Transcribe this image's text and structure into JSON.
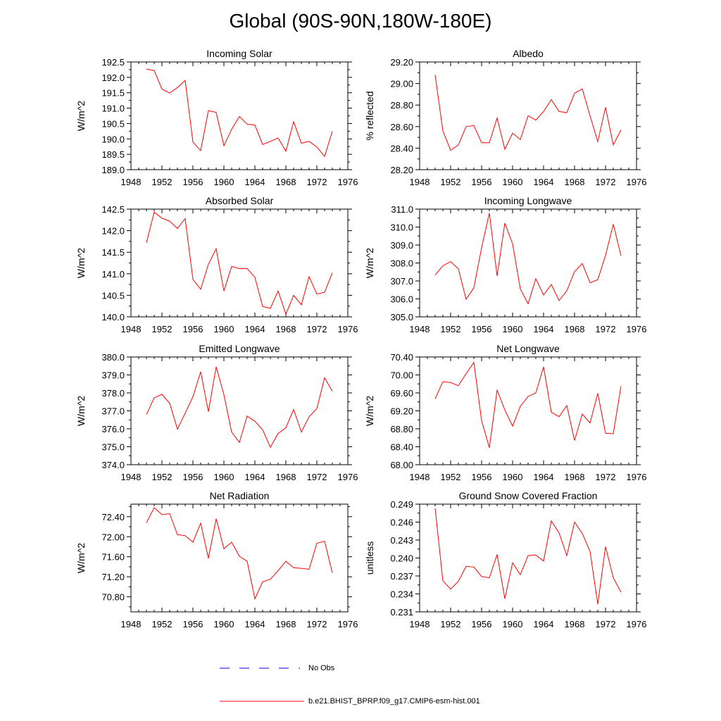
{
  "title": "Global (90S-90N,180W-180E)",
  "colors": {
    "model": "#ff0000",
    "obs": "#0000ff",
    "axis": "#000000"
  },
  "legend": {
    "obs_label": "No Obs",
    "model_label": "b.e21.BHIST_BPRP.f09_g17.CMIP6-esm-hist.001"
  },
  "chart_data": [
    {
      "type": "line",
      "title": "Incoming Solar",
      "ylabel": "W/m^2",
      "xlim": [
        1948,
        1976
      ],
      "xticks": [
        "1948",
        "1952",
        "1956",
        "1960",
        "1964",
        "1968",
        "1972",
        "1976"
      ],
      "ylim": [
        189.0,
        192.5
      ],
      "yticks": [
        "189.0",
        "189.5",
        "190.0",
        "190.5",
        "191.0",
        "191.5",
        "192.0",
        "192.5"
      ],
      "x": [
        1950,
        1951,
        1952,
        1953,
        1954,
        1955,
        1956,
        1957,
        1958,
        1959,
        1960,
        1961,
        1962,
        1963,
        1964,
        1965,
        1966,
        1967,
        1968,
        1969,
        1970,
        1971,
        1972,
        1973,
        1974
      ],
      "values": [
        192.27,
        192.22,
        191.62,
        191.49,
        191.67,
        191.9,
        189.9,
        189.62,
        190.92,
        190.86,
        189.78,
        190.31,
        190.73,
        190.48,
        190.45,
        189.82,
        189.92,
        190.03,
        189.6,
        190.56,
        189.86,
        189.92,
        189.74,
        189.43,
        190.25
      ]
    },
    {
      "type": "line",
      "title": "Albedo",
      "ylabel": "% reflected",
      "xlim": [
        1948,
        1976
      ],
      "xticks": [
        "1948",
        "1952",
        "1956",
        "1960",
        "1964",
        "1968",
        "1972",
        "1976"
      ],
      "ylim": [
        28.2,
        29.2
      ],
      "yticks": [
        "28.20",
        "28.40",
        "28.60",
        "28.80",
        "29.00",
        "29.20"
      ],
      "x": [
        1950,
        1951,
        1952,
        1953,
        1954,
        1955,
        1956,
        1957,
        1958,
        1959,
        1960,
        1961,
        1962,
        1963,
        1964,
        1965,
        1966,
        1967,
        1968,
        1969,
        1970,
        1971,
        1972,
        1973,
        1974
      ],
      "values": [
        29.08,
        28.56,
        28.38,
        28.43,
        28.6,
        28.61,
        28.45,
        28.45,
        28.68,
        28.39,
        28.54,
        28.48,
        28.7,
        28.66,
        28.74,
        28.85,
        28.74,
        28.73,
        28.91,
        28.95,
        28.7,
        28.46,
        28.78,
        28.43,
        28.57
      ]
    },
    {
      "type": "line",
      "title": "Absorbed Solar",
      "ylabel": "W/m^2",
      "xlim": [
        1948,
        1976
      ],
      "xticks": [
        "1948",
        "1952",
        "1956",
        "1960",
        "1964",
        "1968",
        "1972",
        "1976"
      ],
      "ylim": [
        140.0,
        142.5
      ],
      "yticks": [
        "140.0",
        "140.5",
        "141.0",
        "141.5",
        "142.0",
        "142.5"
      ],
      "x": [
        1950,
        1951,
        1952,
        1953,
        1954,
        1955,
        1956,
        1957,
        1958,
        1959,
        1960,
        1961,
        1962,
        1963,
        1964,
        1965,
        1966,
        1967,
        1968,
        1969,
        1970,
        1971,
        1972,
        1973,
        1974
      ],
      "values": [
        141.72,
        142.43,
        142.29,
        142.22,
        142.05,
        142.28,
        140.87,
        140.64,
        141.22,
        141.58,
        140.6,
        141.17,
        141.12,
        141.12,
        140.92,
        140.24,
        140.2,
        140.6,
        140.06,
        140.5,
        140.28,
        140.93,
        140.53,
        140.57,
        141.02
      ]
    },
    {
      "type": "line",
      "title": "Incoming Longwave",
      "ylabel": "W/m^2",
      "xlim": [
        1948,
        1976
      ],
      "xticks": [
        "1948",
        "1952",
        "1956",
        "1960",
        "1964",
        "1968",
        "1972",
        "1976"
      ],
      "ylim": [
        305.0,
        311.0
      ],
      "yticks": [
        "305.0",
        "306.0",
        "307.0",
        "308.0",
        "309.0",
        "310.0",
        "311.0"
      ],
      "x": [
        1950,
        1951,
        1952,
        1953,
        1954,
        1955,
        1956,
        1957,
        1958,
        1959,
        1960,
        1961,
        1962,
        1963,
        1964,
        1965,
        1966,
        1967,
        1968,
        1969,
        1970,
        1971,
        1972,
        1973,
        1974
      ],
      "values": [
        307.33,
        307.84,
        308.08,
        307.67,
        305.98,
        306.62,
        308.85,
        310.78,
        307.28,
        310.22,
        309.07,
        306.55,
        305.73,
        307.12,
        306.22,
        306.8,
        305.91,
        306.45,
        307.52,
        307.97,
        306.9,
        307.07,
        308.42,
        310.16,
        308.4
      ]
    },
    {
      "type": "line",
      "title": "Emitted Longwave",
      "ylabel": "W/m^2",
      "xlim": [
        1948,
        1976
      ],
      "xticks": [
        "1948",
        "1952",
        "1956",
        "1960",
        "1964",
        "1968",
        "1972",
        "1976"
      ],
      "ylim": [
        374.0,
        380.0
      ],
      "yticks": [
        "374.0",
        "375.0",
        "376.0",
        "377.0",
        "378.0",
        "379.0",
        "380.0"
      ],
      "x": [
        1950,
        1951,
        1952,
        1953,
        1954,
        1955,
        1956,
        1957,
        1958,
        1959,
        1960,
        1961,
        1962,
        1963,
        1964,
        1965,
        1966,
        1967,
        1968,
        1969,
        1970,
        1971,
        1972,
        1973,
        1974
      ],
      "values": [
        376.8,
        377.72,
        377.92,
        377.42,
        375.98,
        376.87,
        377.79,
        379.18,
        376.95,
        379.46,
        377.9,
        375.81,
        375.24,
        376.71,
        376.42,
        375.95,
        374.97,
        375.74,
        376.06,
        377.08,
        375.82,
        376.67,
        377.12,
        378.84,
        378.09
      ]
    },
    {
      "type": "line",
      "title": "Net Longwave",
      "ylabel": "W/m^2",
      "xlim": [
        1948,
        1976
      ],
      "xticks": [
        "1948",
        "1952",
        "1956",
        "1960",
        "1964",
        "1968",
        "1972",
        "1976"
      ],
      "ylim": [
        68.0,
        70.4
      ],
      "yticks": [
        "68.00",
        "68.40",
        "68.80",
        "69.20",
        "69.60",
        "70.00",
        "70.40"
      ],
      "x": [
        1950,
        1951,
        1952,
        1953,
        1954,
        1955,
        1956,
        1957,
        1958,
        1959,
        1960,
        1961,
        1962,
        1963,
        1964,
        1965,
        1966,
        1967,
        1968,
        1969,
        1970,
        1971,
        1972,
        1973,
        1974
      ],
      "values": [
        69.47,
        69.85,
        69.83,
        69.76,
        70.03,
        70.28,
        68.98,
        68.38,
        69.66,
        69.22,
        68.86,
        69.3,
        69.52,
        69.6,
        70.18,
        69.17,
        69.07,
        69.32,
        68.54,
        69.13,
        68.93,
        69.59,
        68.7,
        68.69,
        69.75
      ]
    },
    {
      "type": "line",
      "title": "Net Radiation",
      "ylabel": "W/m^2",
      "xlim": [
        1948,
        1976
      ],
      "xticks": [
        "1948",
        "1952",
        "1956",
        "1960",
        "1964",
        "1968",
        "1972",
        "1976"
      ],
      "ylim": [
        70.5,
        72.65
      ],
      "yticks": [
        "70.80",
        "71.20",
        "71.60",
        "72.00",
        "72.40"
      ],
      "x": [
        1950,
        1951,
        1952,
        1953,
        1954,
        1955,
        1956,
        1957,
        1958,
        1959,
        1960,
        1961,
        1962,
        1963,
        1964,
        1965,
        1966,
        1967,
        1968,
        1969,
        1970,
        1971,
        1972,
        1973,
        1974
      ],
      "values": [
        72.28,
        72.58,
        72.44,
        72.46,
        72.04,
        72.02,
        71.89,
        72.27,
        71.57,
        72.36,
        71.76,
        71.89,
        71.61,
        71.51,
        70.76,
        71.1,
        71.15,
        71.32,
        71.51,
        71.38,
        71.37,
        71.35,
        71.87,
        71.91,
        71.28
      ]
    },
    {
      "type": "line",
      "title": "Ground Snow Covered Fraction",
      "ylabel": "unitless",
      "xlim": [
        1948,
        1976
      ],
      "xticks": [
        "1948",
        "1952",
        "1956",
        "1960",
        "1964",
        "1968",
        "1972",
        "1976"
      ],
      "ylim": [
        0.231,
        0.249
      ],
      "yticks": [
        "0.231",
        "0.234",
        "0.237",
        "0.240",
        "0.243",
        "0.246",
        "0.249"
      ],
      "x": [
        1950,
        1951,
        1952,
        1953,
        1954,
        1955,
        1956,
        1957,
        1958,
        1959,
        1960,
        1961,
        1962,
        1963,
        1964,
        1965,
        1966,
        1967,
        1968,
        1969,
        1970,
        1971,
        1972,
        1973,
        1974
      ],
      "values": [
        0.2483,
        0.2362,
        0.2348,
        0.2361,
        0.2386,
        0.2385,
        0.2369,
        0.2367,
        0.2406,
        0.2332,
        0.2392,
        0.2372,
        0.2404,
        0.2405,
        0.2395,
        0.2462,
        0.2442,
        0.2404,
        0.246,
        0.2441,
        0.2411,
        0.2323,
        0.2419,
        0.2367,
        0.2343
      ]
    }
  ]
}
